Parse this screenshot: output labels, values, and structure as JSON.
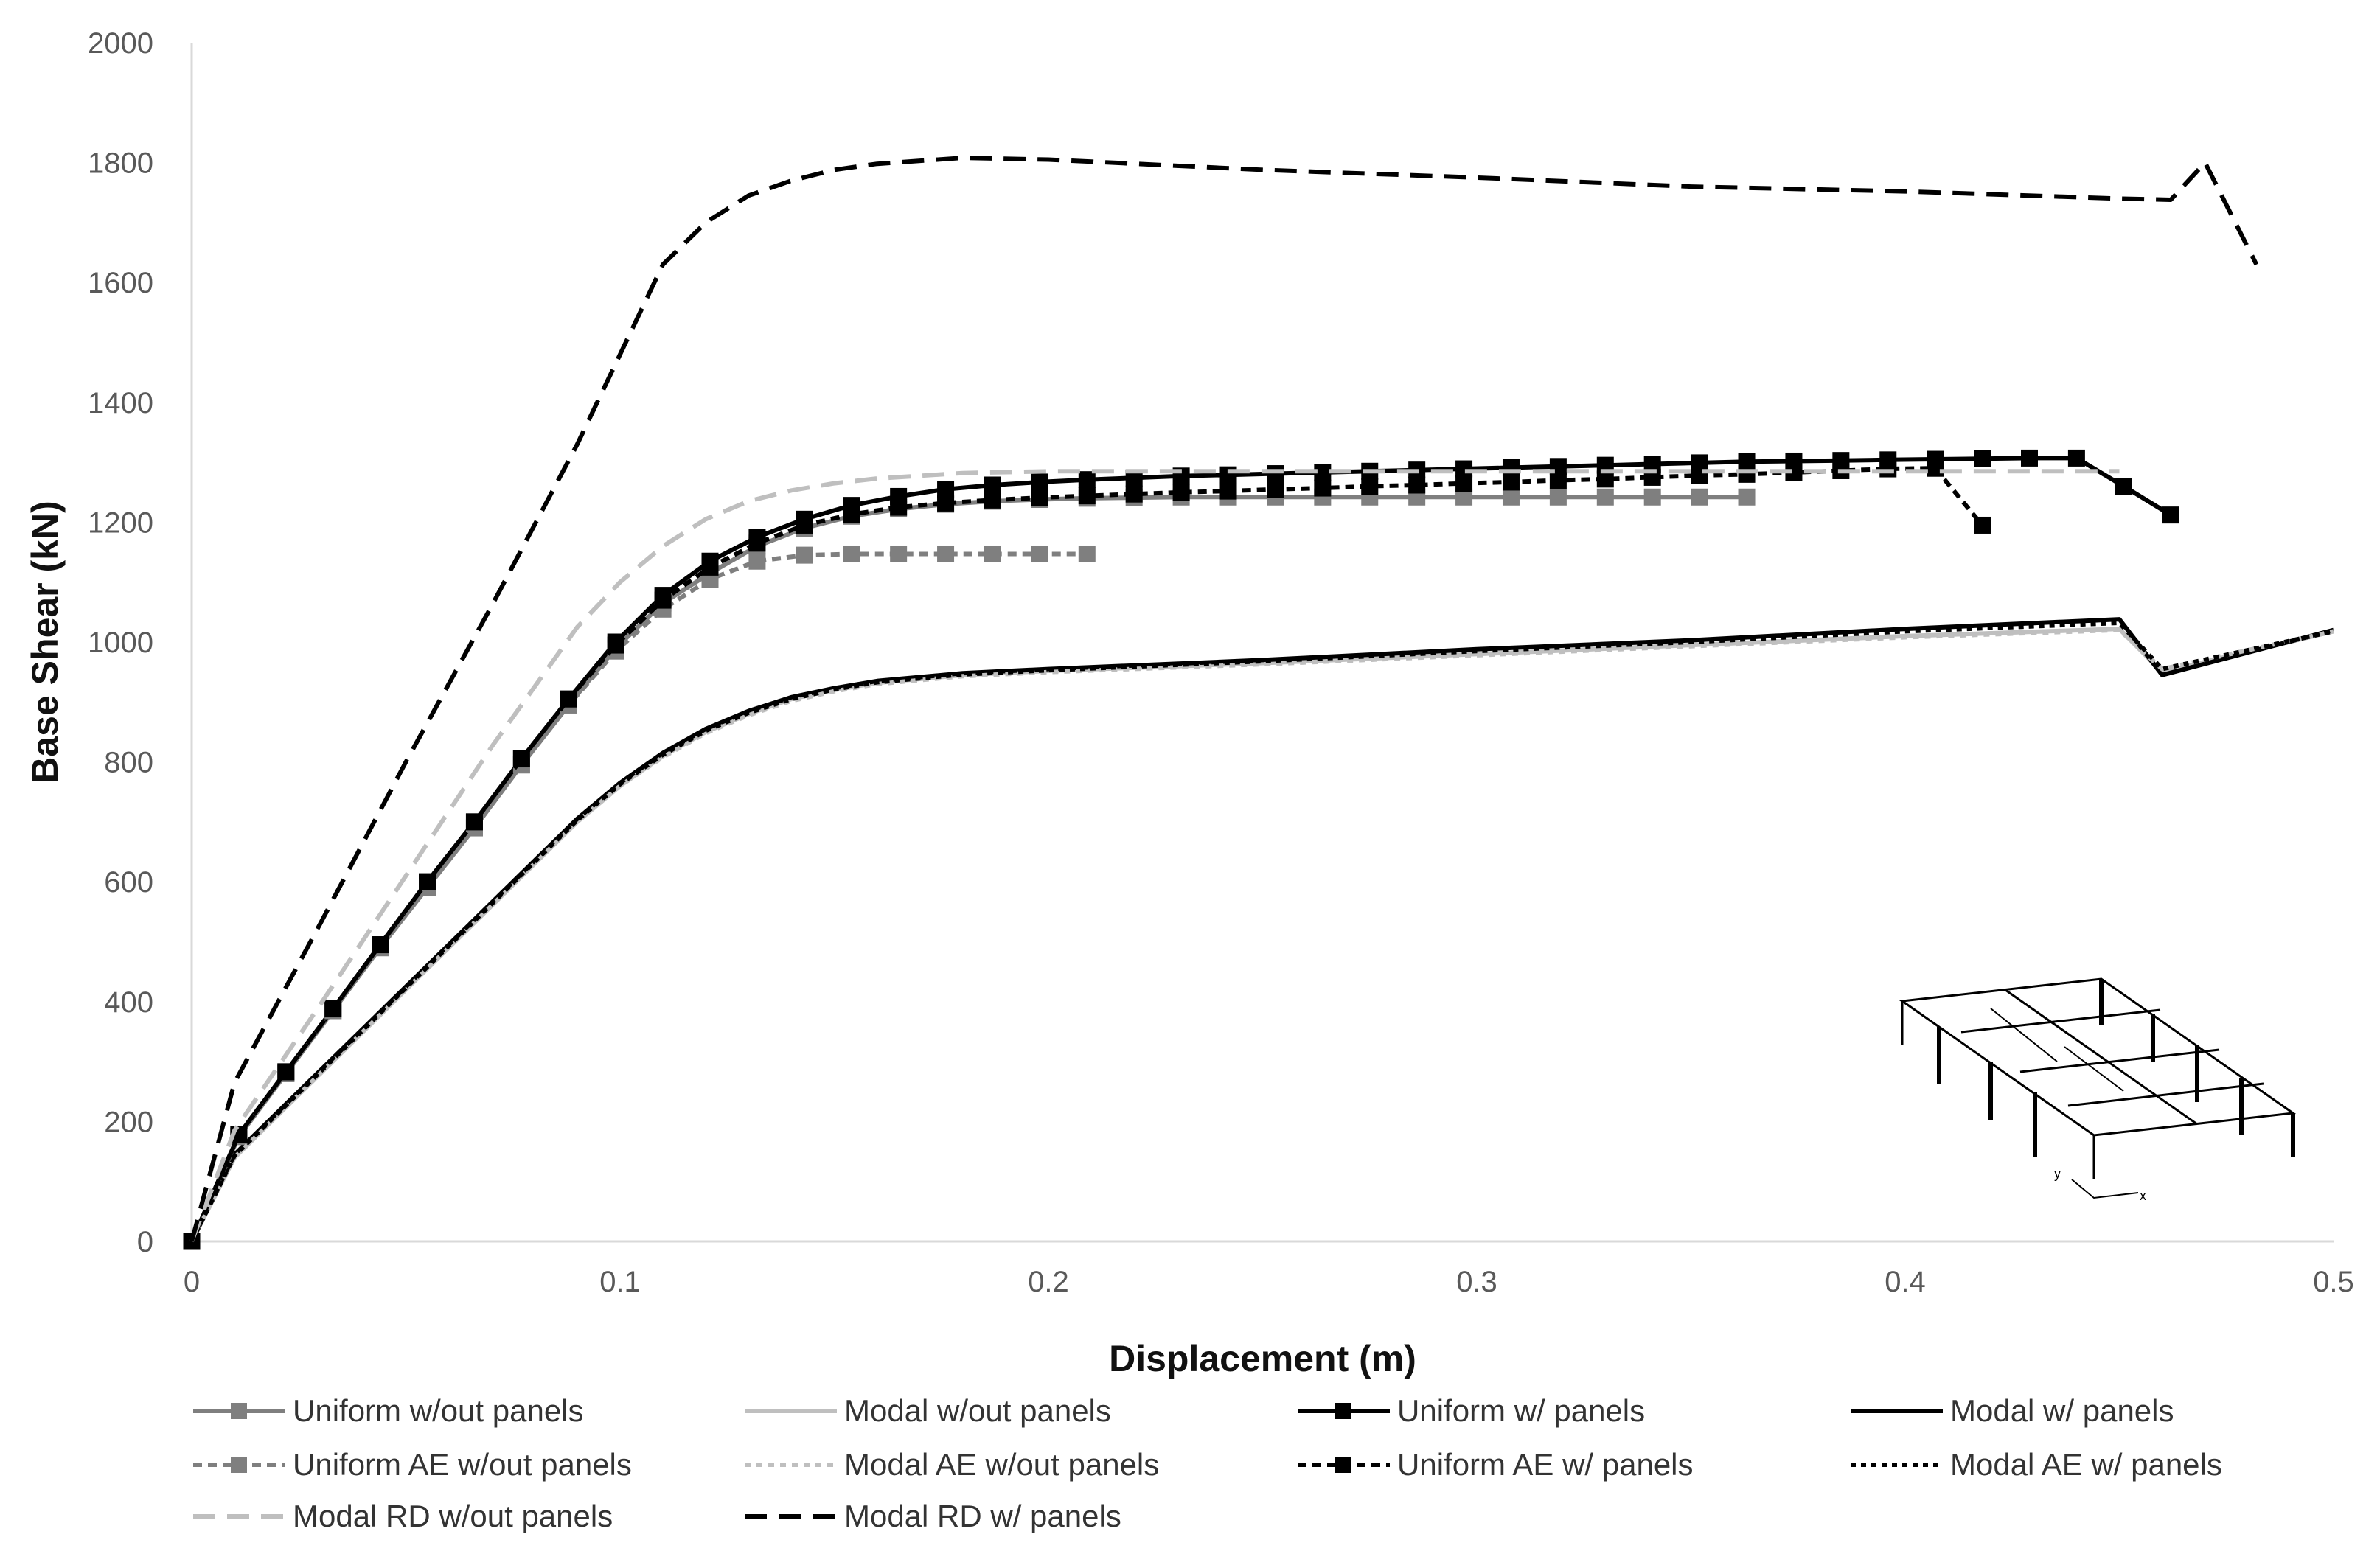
{
  "chart_data": {
    "type": "line",
    "title": "",
    "xlabel": "Displacement (m)",
    "ylabel": "Base Shear (kN)",
    "xlim": [
      0,
      0.5
    ],
    "ylim": [
      0,
      2000
    ],
    "xticks": [
      0,
      0.1,
      0.2,
      0.3,
      0.4,
      0.5
    ],
    "xtick_labels": [
      "0",
      "0.1",
      "0.2",
      "0.3",
      "0.4",
      "0.5"
    ],
    "yticks": [
      0,
      200,
      400,
      600,
      800,
      1000,
      1200,
      1400,
      1600,
      1800,
      2000
    ],
    "ytick_labels": [
      "0",
      "200",
      "400",
      "600",
      "800",
      "1000",
      "1200",
      "1400",
      "1600",
      "1800",
      "2000"
    ],
    "grid": false,
    "legend_position": "bottom",
    "inset": "3D frame structure sketch with y/x axis indicator, lower-right",
    "series": [
      {
        "name": "Uniform w/out panels",
        "color": "#7f7f7f",
        "dash": "",
        "marker": "square",
        "x": [
          0,
          0.011,
          0.022,
          0.033,
          0.044,
          0.055,
          0.066,
          0.077,
          0.088,
          0.099,
          0.11,
          0.121,
          0.132,
          0.143,
          0.154,
          0.165,
          0.176,
          0.187,
          0.198,
          0.209,
          0.22,
          0.231,
          0.242,
          0.253,
          0.264,
          0.275,
          0.286,
          0.297,
          0.308,
          0.319,
          0.33,
          0.341,
          0.352,
          0.363
        ],
        "y": [
          0,
          175,
          280,
          385,
          490,
          590,
          690,
          795,
          895,
          990,
          1065,
          1115,
          1160,
          1190,
          1210,
          1222,
          1230,
          1235,
          1238,
          1240,
          1241,
          1242,
          1242,
          1242,
          1242,
          1242,
          1242,
          1242,
          1242,
          1242,
          1242,
          1242,
          1242,
          1242
        ]
      },
      {
        "name": "Modal w/out panels",
        "color": "#bfbfbf",
        "dash": "",
        "marker": "none",
        "x": [
          0,
          0.01,
          0.03,
          0.05,
          0.07,
          0.09,
          0.1,
          0.11,
          0.12,
          0.13,
          0.14,
          0.15,
          0.16,
          0.18,
          0.2,
          0.25,
          0.3,
          0.35,
          0.4,
          0.45,
          0.46,
          0.5
        ],
        "y": [
          0,
          140,
          280,
          420,
          560,
          700,
          760,
          810,
          850,
          880,
          905,
          920,
          932,
          945,
          952,
          965,
          980,
          995,
          1010,
          1022,
          950,
          1018
        ]
      },
      {
        "name": "Uniform w/ panels",
        "color": "#000000",
        "dash": "",
        "marker": "square",
        "x": [
          0,
          0.011,
          0.022,
          0.033,
          0.044,
          0.055,
          0.066,
          0.077,
          0.088,
          0.099,
          0.11,
          0.121,
          0.132,
          0.143,
          0.154,
          0.165,
          0.176,
          0.187,
          0.198,
          0.209,
          0.22,
          0.231,
          0.242,
          0.253,
          0.264,
          0.275,
          0.286,
          0.297,
          0.308,
          0.319,
          0.33,
          0.341,
          0.352,
          0.363,
          0.374,
          0.385,
          0.396,
          0.407,
          0.418,
          0.429,
          0.44,
          0.451,
          0.462
        ],
        "y": [
          0,
          178,
          283,
          388,
          495,
          600,
          700,
          805,
          905,
          1000,
          1078,
          1135,
          1175,
          1205,
          1228,
          1243,
          1255,
          1262,
          1267,
          1271,
          1274,
          1277,
          1279,
          1281,
          1283,
          1285,
          1287,
          1289,
          1291,
          1293,
          1295,
          1297,
          1299,
          1301,
          1302,
          1303,
          1304,
          1305,
          1306,
          1307,
          1307,
          1260,
          1212
        ]
      },
      {
        "name": "Modal w/ panels",
        "color": "#000000",
        "dash": "",
        "marker": "none",
        "x": [
          0,
          0.01,
          0.03,
          0.05,
          0.07,
          0.09,
          0.1,
          0.11,
          0.12,
          0.13,
          0.14,
          0.15,
          0.16,
          0.18,
          0.2,
          0.25,
          0.3,
          0.35,
          0.4,
          0.45,
          0.46,
          0.5
        ],
        "y": [
          0,
          145,
          285,
          425,
          565,
          705,
          765,
          815,
          855,
          885,
          908,
          923,
          935,
          948,
          955,
          970,
          988,
          1003,
          1022,
          1038,
          945,
          1020
        ]
      },
      {
        "name": "Uniform AE w/out panels",
        "color": "#7f7f7f",
        "dash": "12,8",
        "marker": "square",
        "x": [
          0,
          0.011,
          0.022,
          0.033,
          0.044,
          0.055,
          0.066,
          0.077,
          0.088,
          0.099,
          0.11,
          0.121,
          0.132,
          0.143,
          0.154,
          0.165,
          0.176,
          0.187,
          0.198,
          0.209
        ],
        "y": [
          0,
          175,
          280,
          385,
          490,
          590,
          690,
          795,
          895,
          985,
          1055,
          1105,
          1135,
          1145,
          1147,
          1147,
          1147,
          1147,
          1147,
          1147
        ]
      },
      {
        "name": "Modal AE w/out panels",
        "color": "#bfbfbf",
        "dash": "8,8",
        "marker": "none",
        "x": [
          0,
          0.01,
          0.03,
          0.05,
          0.07,
          0.09,
          0.1,
          0.11,
          0.12,
          0.13,
          0.14,
          0.15,
          0.16,
          0.18,
          0.2,
          0.25,
          0.3,
          0.35,
          0.4,
          0.45,
          0.46,
          0.5
        ],
        "y": [
          0,
          140,
          280,
          420,
          560,
          700,
          760,
          808,
          848,
          878,
          902,
          918,
          930,
          943,
          950,
          963,
          978,
          993,
          1008,
          1020,
          955,
          1018
        ]
      },
      {
        "name": "Uniform AE w/ panels",
        "color": "#000000",
        "dash": "12,8",
        "marker": "square",
        "x": [
          0,
          0.011,
          0.022,
          0.033,
          0.044,
          0.055,
          0.066,
          0.077,
          0.088,
          0.099,
          0.11,
          0.121,
          0.132,
          0.143,
          0.154,
          0.165,
          0.176,
          0.187,
          0.198,
          0.209,
          0.22,
          0.231,
          0.242,
          0.253,
          0.264,
          0.275,
          0.286,
          0.297,
          0.308,
          0.319,
          0.33,
          0.341,
          0.352,
          0.363,
          0.374,
          0.385,
          0.396,
          0.407,
          0.418
        ],
        "y": [
          0,
          178,
          283,
          388,
          495,
          600,
          700,
          805,
          905,
          995,
          1070,
          1125,
          1165,
          1195,
          1213,
          1225,
          1232,
          1237,
          1241,
          1244,
          1247,
          1250,
          1252,
          1255,
          1257,
          1260,
          1262,
          1265,
          1267,
          1270,
          1272,
          1275,
          1278,
          1280,
          1283,
          1286,
          1289,
          1290,
          1195
        ]
      },
      {
        "name": "Modal AE w/ panels",
        "color": "#000000",
        "dash": "7,7",
        "marker": "none",
        "x": [
          0,
          0.01,
          0.03,
          0.05,
          0.07,
          0.09,
          0.1,
          0.11,
          0.12,
          0.13,
          0.14,
          0.15,
          0.16,
          0.18,
          0.2,
          0.25,
          0.3,
          0.35,
          0.4,
          0.45,
          0.46,
          0.5
        ],
        "y": [
          0,
          143,
          283,
          423,
          563,
          703,
          763,
          812,
          852,
          882,
          905,
          921,
          933,
          946,
          953,
          968,
          985,
          1000,
          1018,
          1032,
          955,
          1018
        ]
      },
      {
        "name": "Modal RD w/out panels",
        "color": "#bfbfbf",
        "dash": "30,16",
        "marker": "none",
        "x": [
          0,
          0.01,
          0.03,
          0.05,
          0.07,
          0.09,
          0.1,
          0.11,
          0.12,
          0.13,
          0.14,
          0.15,
          0.16,
          0.18,
          0.2,
          0.25,
          0.3,
          0.35,
          0.4,
          0.45
        ],
        "y": [
          0,
          185,
          395,
          610,
          825,
          1025,
          1100,
          1160,
          1205,
          1235,
          1253,
          1265,
          1273,
          1282,
          1285,
          1285,
          1285,
          1285,
          1285,
          1285
        ]
      },
      {
        "name": "Modal RD w/ panels",
        "color": "#000000",
        "dash": "30,16",
        "marker": "none",
        "x": [
          0,
          0.01,
          0.03,
          0.05,
          0.07,
          0.09,
          0.11,
          0.12,
          0.13,
          0.14,
          0.15,
          0.16,
          0.18,
          0.2,
          0.25,
          0.3,
          0.35,
          0.4,
          0.45,
          0.462,
          0.47,
          0.482
        ],
        "y": [
          0,
          265,
          530,
          800,
          1060,
          1330,
          1630,
          1700,
          1745,
          1770,
          1788,
          1798,
          1808,
          1805,
          1788,
          1775,
          1760,
          1752,
          1740,
          1738,
          1800,
          1630
        ]
      }
    ]
  }
}
